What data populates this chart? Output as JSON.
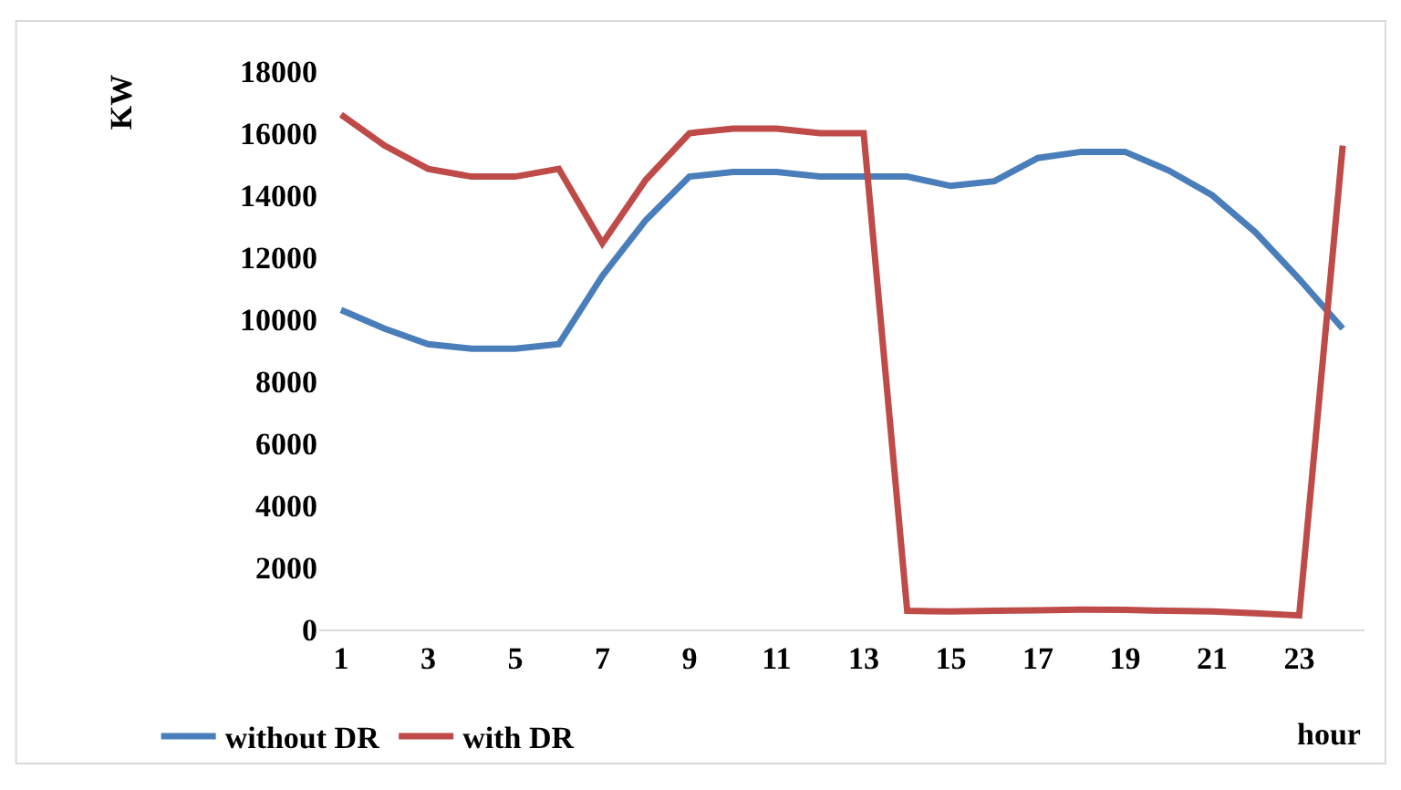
{
  "chart_data": {
    "type": "line",
    "ylabel": "KW",
    "xlabel": "hour",
    "x": [
      1,
      2,
      3,
      4,
      5,
      6,
      7,
      8,
      9,
      10,
      11,
      12,
      13,
      14,
      15,
      16,
      17,
      18,
      19,
      20,
      21,
      22,
      23,
      24
    ],
    "series": [
      {
        "name": "without DR",
        "color": "#4a7ebb",
        "values": [
          10300,
          9700,
          9200,
          9050,
          9050,
          9200,
          11400,
          13200,
          14600,
          14750,
          14750,
          14600,
          14600,
          14600,
          14300,
          14450,
          15200,
          15400,
          15400,
          14800,
          14000,
          12800,
          11300,
          9700
        ]
      },
      {
        "name": "with DR",
        "color": "#be4b48",
        "values": [
          16600,
          15600,
          14850,
          14600,
          14600,
          14850,
          12450,
          14500,
          16000,
          16150,
          16150,
          16000,
          16000,
          600,
          580,
          600,
          620,
          640,
          630,
          600,
          580,
          520,
          450,
          15600
        ]
      }
    ],
    "xlim": [
      0.5,
      24.5
    ],
    "xticks": [
      1,
      3,
      5,
      7,
      9,
      11,
      13,
      15,
      17,
      19,
      21,
      23
    ],
    "ylim": [
      0,
      18000
    ],
    "yticks": [
      0,
      2000,
      4000,
      6000,
      8000,
      10000,
      12000,
      14000,
      16000,
      18000
    ],
    "legend": "bottom left",
    "marker": "none",
    "line_style": "solid"
  }
}
